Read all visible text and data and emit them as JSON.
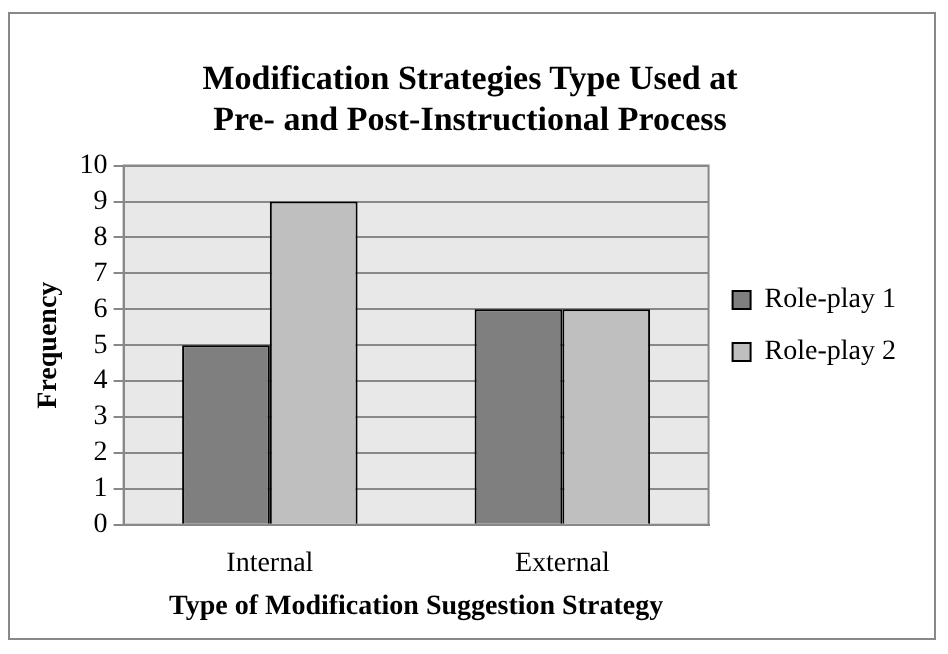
{
  "chart_data": {
    "type": "bar",
    "title": "Modification Strategies Type Used at\nPre- and Post-Instructional Process",
    "xlabel": "Type of Modification Suggestion Strategy",
    "ylabel": "Frequency",
    "categories": [
      "Internal",
      "External"
    ],
    "series": [
      {
        "name": "Role-play 1",
        "color": "#7f7f7f",
        "values": [
          5,
          6
        ]
      },
      {
        "name": "Role-play 2",
        "color": "#bfbfbf",
        "values": [
          9,
          6
        ]
      }
    ],
    "ylim": [
      0,
      10
    ],
    "yticks": [
      0,
      1,
      2,
      3,
      4,
      5,
      6,
      7,
      8,
      9,
      10
    ],
    "grid": "y",
    "legend": "right"
  }
}
